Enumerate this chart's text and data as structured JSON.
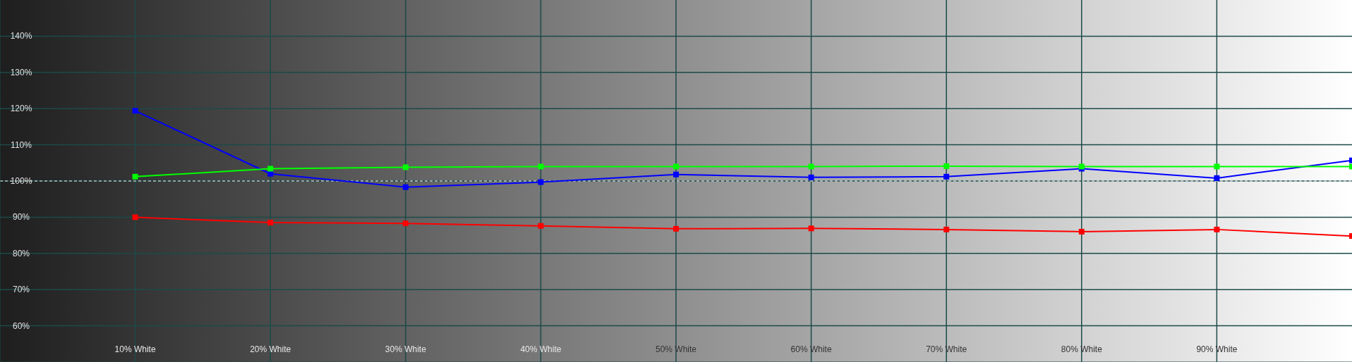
{
  "chart_data": {
    "type": "line",
    "x": [
      10,
      20,
      30,
      40,
      50,
      60,
      70,
      80,
      90,
      100
    ],
    "series": [
      {
        "color": "#ff0000",
        "values": [
          90,
          88.5,
          88.3,
          87.6,
          86.8,
          86.9,
          86.6,
          86,
          86.6,
          84.8
        ]
      },
      {
        "color": "#0000ff",
        "values": [
          119.4,
          102,
          98.3,
          99.7,
          101.8,
          101,
          101.2,
          103.4,
          100.8,
          105.7
        ]
      },
      {
        "color": "#00ff00",
        "values": [
          101.2,
          103.4,
          103.8,
          104,
          104,
          104,
          104.1,
          104,
          104,
          104
        ]
      }
    ],
    "xlim": [
      0,
      100
    ],
    "xticks": [
      {
        "value": 10,
        "label": "10% White"
      },
      {
        "value": 20,
        "label": "20% White"
      },
      {
        "value": 30,
        "label": "30% White"
      },
      {
        "value": 40,
        "label": "40% White"
      },
      {
        "value": 50,
        "label": "50% White"
      },
      {
        "value": 60,
        "label": "60% White"
      },
      {
        "value": 70,
        "label": "70% White"
      },
      {
        "value": 80,
        "label": "80% White"
      },
      {
        "value": 90,
        "label": "90% White"
      }
    ],
    "ylim": [
      50,
      150
    ],
    "yticks": [
      {
        "value": 60,
        "label": "60%"
      },
      {
        "value": 70,
        "label": "70%"
      },
      {
        "value": 80,
        "label": "80%"
      },
      {
        "value": 90,
        "label": "90%"
      },
      {
        "value": 100,
        "label": "100%"
      },
      {
        "value": 110,
        "label": "110%"
      },
      {
        "value": 120,
        "label": "120%"
      },
      {
        "value": 130,
        "label": "130%"
      },
      {
        "value": 140,
        "label": "140%"
      }
    ],
    "ref_lines": [
      {
        "axis": "y",
        "value": 100,
        "color": "#ffffff",
        "line_style": "dashed"
      }
    ],
    "grid": true,
    "marker": "square",
    "line_style": "solid"
  }
}
